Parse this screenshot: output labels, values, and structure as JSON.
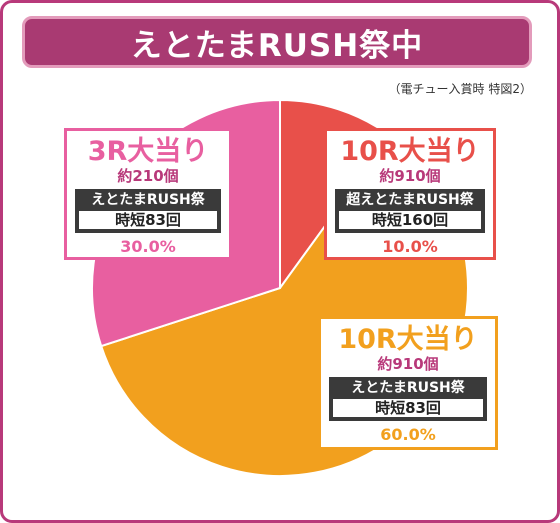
{
  "header": {
    "title": "えとたまRUSH祭中"
  },
  "note": "（電チュー入賞時 特図2）",
  "colors": {
    "pink": "#e85fa0",
    "red": "#e8504a",
    "orange": "#f2a01e",
    "frame": "#b8397a"
  },
  "chart_data": {
    "type": "pie",
    "title": "えとたまRUSH祭中",
    "slices": [
      {
        "label": "10R大当り",
        "payout": "約910個",
        "mode": "超えとたまRUSH祭",
        "time": "時短160回",
        "value": 10.0,
        "percent_text": "10.0%",
        "color": "#e8504a"
      },
      {
        "label": "10R大当り",
        "payout": "約910個",
        "mode": "えとたまRUSH祭",
        "time": "時短83回",
        "value": 60.0,
        "percent_text": "60.0%",
        "color": "#f2a01e"
      },
      {
        "label": "3R大当り",
        "payout": "約210個",
        "mode": "えとたまRUSH祭",
        "time": "時短83回",
        "value": 30.0,
        "percent_text": "30.0%",
        "color": "#e85fa0"
      }
    ]
  }
}
